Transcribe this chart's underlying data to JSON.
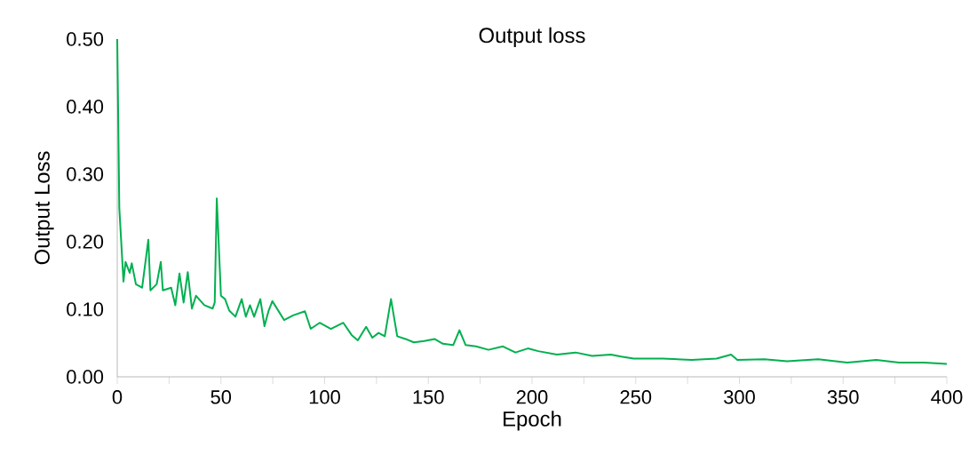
{
  "chart_data": {
    "type": "line",
    "title": "Output loss",
    "xlabel": "Epoch",
    "ylabel": "Output Loss",
    "series": [
      {
        "color": "#00b050",
        "x": [
          0,
          1,
          3,
          4,
          6,
          7,
          9,
          12,
          15,
          16,
          19,
          21,
          22,
          26,
          28,
          30,
          32,
          34,
          36,
          38,
          42,
          46,
          47,
          48,
          50,
          52,
          54,
          57,
          60,
          62,
          64,
          66,
          69,
          71,
          73,
          74.8,
          80.5,
          84.8,
          90.5,
          93.3,
          97.6,
          103,
          109,
          113,
          116,
          120,
          123,
          126,
          129,
          132,
          135,
          139,
          143,
          148,
          153,
          157,
          162,
          165,
          168,
          173,
          179,
          186,
          192,
          198,
          203,
          212,
          221,
          229,
          238,
          243,
          249,
          263,
          277,
          289,
          296,
          299,
          312,
          323,
          338,
          352,
          366,
          377,
          389,
          400
        ],
        "values": [
          0.5,
          0.25,
          0.141,
          0.17,
          0.154,
          0.168,
          0.137,
          0.132,
          0.203,
          0.128,
          0.137,
          0.17,
          0.128,
          0.132,
          0.106,
          0.153,
          0.11,
          0.155,
          0.101,
          0.12,
          0.106,
          0.101,
          0.11,
          0.264,
          0.12,
          0.115,
          0.098,
          0.089,
          0.115,
          0.089,
          0.106,
          0.089,
          0.115,
          0.075,
          0.098,
          0.112,
          0.084,
          0.091,
          0.097,
          0.071,
          0.08,
          0.071,
          0.08,
          0.062,
          0.054,
          0.074,
          0.058,
          0.065,
          0.06,
          0.115,
          0.06,
          0.056,
          0.051,
          0.053,
          0.056,
          0.049,
          0.047,
          0.069,
          0.047,
          0.045,
          0.04,
          0.045,
          0.036,
          0.042,
          0.038,
          0.033,
          0.036,
          0.031,
          0.033,
          0.03,
          0.027,
          0.027,
          0.025,
          0.027,
          0.033,
          0.025,
          0.026,
          0.023,
          0.026,
          0.021,
          0.025,
          0.021,
          0.021,
          0.019
        ]
      }
    ],
    "xlim": [
      0,
      400
    ],
    "xticks": [
      0,
      {
        "value": 25,
        "label": null
      },
      50,
      {
        "value": 75,
        "label": null
      },
      100,
      {
        "value": 125,
        "label": null
      },
      150,
      {
        "value": 175,
        "label": null
      },
      200,
      {
        "value": 225,
        "label": null
      },
      250,
      {
        "value": 275,
        "label": null
      },
      300,
      {
        "value": 325,
        "label": null
      },
      350,
      {
        "value": 375,
        "label": null
      },
      400
    ],
    "ylim": [
      0,
      0.5
    ],
    "yticks": [
      {
        "value": 0,
        "label": "0.00"
      },
      {
        "value": 0.1,
        "label": "0.10"
      },
      {
        "value": 0.2,
        "label": "0.20"
      },
      {
        "value": 0.3,
        "label": "0.30"
      },
      {
        "value": 0.4,
        "label": "0.40"
      },
      {
        "value": 0.5,
        "label": "0.50"
      }
    ],
    "grid": false,
    "marker": "none",
    "line_style": "solid"
  }
}
